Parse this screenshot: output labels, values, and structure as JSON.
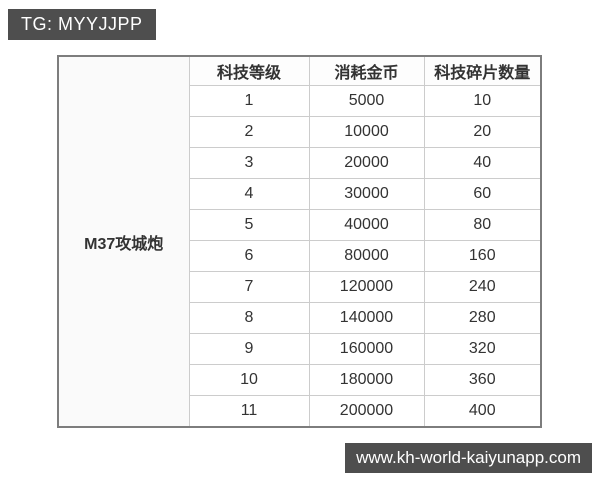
{
  "watermarks": {
    "top_badge": "TG: MYYJJPP",
    "bottom_badge": "www.kh-world-kaiyunapp.com"
  },
  "table": {
    "unit_label": "M37攻城炮",
    "columns": [
      "科技等级",
      "消耗金币",
      "科技碎片数量"
    ],
    "rows": [
      [
        "1",
        "5000",
        "10"
      ],
      [
        "2",
        "10000",
        "20"
      ],
      [
        "3",
        "20000",
        "40"
      ],
      [
        "4",
        "30000",
        "60"
      ],
      [
        "5",
        "40000",
        "80"
      ],
      [
        "6",
        "80000",
        "160"
      ],
      [
        "7",
        "120000",
        "240"
      ],
      [
        "8",
        "140000",
        "280"
      ],
      [
        "9",
        "160000",
        "320"
      ],
      [
        "10",
        "180000",
        "360"
      ],
      [
        "11",
        "200000",
        "400"
      ]
    ]
  },
  "chart_data": {
    "type": "table",
    "row_group_label": "M37攻城炮",
    "columns": [
      "科技等级",
      "消耗金币",
      "科技碎片数量"
    ],
    "rows": [
      [
        1,
        5000,
        10
      ],
      [
        2,
        10000,
        20
      ],
      [
        3,
        20000,
        40
      ],
      [
        4,
        30000,
        60
      ],
      [
        5,
        40000,
        80
      ],
      [
        6,
        80000,
        160
      ],
      [
        7,
        120000,
        240
      ],
      [
        8,
        140000,
        280
      ],
      [
        9,
        160000,
        320
      ],
      [
        10,
        180000,
        360
      ],
      [
        11,
        200000,
        400
      ]
    ]
  },
  "colors": {
    "badge_bg": "#4e4e4e",
    "badge_text": "#ffffff",
    "table_outer_border": "#7d7d7d",
    "table_inner_border": "#cccccc",
    "table_text": "#333333",
    "unit_cell_bg": "#fafafa",
    "page_bg": "#ffffff"
  }
}
